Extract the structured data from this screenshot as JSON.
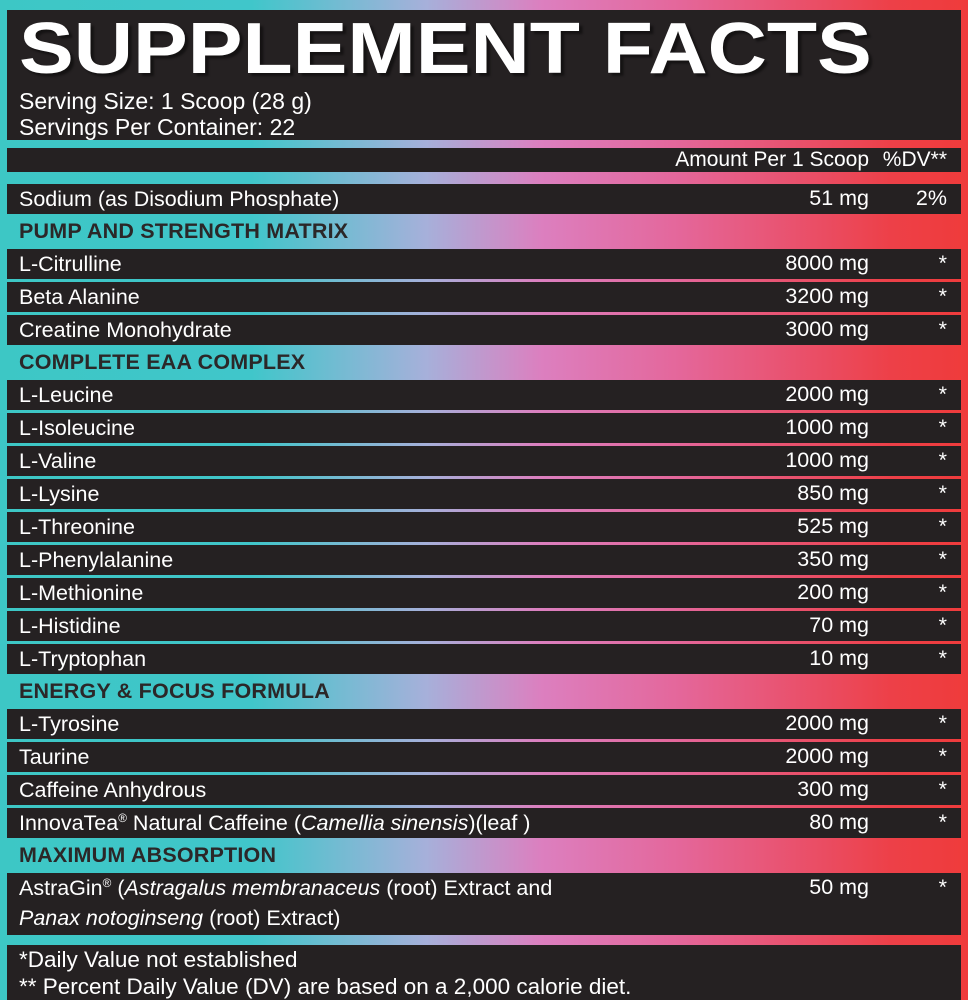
{
  "header": {
    "title": "SUPPLEMENT FACTS",
    "serving_size": "Serving Size: 1 Scoop (28 g)",
    "servings_per_container": "Servings Per Container: 22"
  },
  "columns": {
    "amount_label": "Amount Per 1 Scoop",
    "dv_label": "%DV**"
  },
  "rows": [
    {
      "type": "ingredient",
      "lines": [
        [
          {
            "t": "Sodium (as Disodium Phosphate)"
          }
        ]
      ],
      "amount": "51 mg",
      "dv": "2%"
    },
    {
      "type": "section",
      "title": "PUMP AND STRENGTH MATRIX"
    },
    {
      "type": "ingredient",
      "lines": [
        [
          {
            "t": "L-Citrulline"
          }
        ]
      ],
      "amount": "8000 mg",
      "dv": "*"
    },
    {
      "type": "ingredient",
      "lines": [
        [
          {
            "t": "Beta Alanine"
          }
        ]
      ],
      "amount": "3200 mg",
      "dv": "*"
    },
    {
      "type": "ingredient",
      "lines": [
        [
          {
            "t": "Creatine Monohydrate"
          }
        ]
      ],
      "amount": "3000 mg",
      "dv": "*"
    },
    {
      "type": "section",
      "title": "COMPLETE EAA COMPLEX"
    },
    {
      "type": "ingredient",
      "lines": [
        [
          {
            "t": "L-Leucine"
          }
        ]
      ],
      "amount": "2000 mg",
      "dv": "*"
    },
    {
      "type": "ingredient",
      "lines": [
        [
          {
            "t": "L-Isoleucine"
          }
        ]
      ],
      "amount": "1000 mg",
      "dv": "*"
    },
    {
      "type": "ingredient",
      "lines": [
        [
          {
            "t": "L-Valine"
          }
        ]
      ],
      "amount": "1000 mg",
      "dv": "*"
    },
    {
      "type": "ingredient",
      "lines": [
        [
          {
            "t": "L-Lysine"
          }
        ]
      ],
      "amount": "850 mg",
      "dv": "*"
    },
    {
      "type": "ingredient",
      "lines": [
        [
          {
            "t": "L-Threonine"
          }
        ]
      ],
      "amount": "525 mg",
      "dv": "*"
    },
    {
      "type": "ingredient",
      "lines": [
        [
          {
            "t": "L-Phenylalanine"
          }
        ]
      ],
      "amount": "350 mg",
      "dv": "*"
    },
    {
      "type": "ingredient",
      "lines": [
        [
          {
            "t": "L-Methionine"
          }
        ]
      ],
      "amount": "200 mg",
      "dv": "*"
    },
    {
      "type": "ingredient",
      "lines": [
        [
          {
            "t": "L-Histidine"
          }
        ]
      ],
      "amount": "70 mg",
      "dv": "*"
    },
    {
      "type": "ingredient",
      "lines": [
        [
          {
            "t": "L-Tryptophan"
          }
        ]
      ],
      "amount": "10 mg",
      "dv": "*"
    },
    {
      "type": "section",
      "title": "ENERGY & FOCUS FORMULA"
    },
    {
      "type": "ingredient",
      "lines": [
        [
          {
            "t": "L-Tyrosine"
          }
        ]
      ],
      "amount": "2000 mg",
      "dv": "*"
    },
    {
      "type": "ingredient",
      "lines": [
        [
          {
            "t": "Taurine"
          }
        ]
      ],
      "amount": "2000 mg",
      "dv": "*"
    },
    {
      "type": "ingredient",
      "lines": [
        [
          {
            "t": "Caffeine Anhydrous"
          }
        ]
      ],
      "amount": "300 mg",
      "dv": "*"
    },
    {
      "type": "ingredient",
      "lines": [
        [
          {
            "t": "InnovaTea"
          },
          {
            "t": "®",
            "sup": true
          },
          {
            "t": " Natural Caffeine ("
          },
          {
            "t": "Camellia sinensis",
            "italic": true
          },
          {
            "t": ")(leaf )"
          }
        ]
      ],
      "amount": "80 mg",
      "dv": "*"
    },
    {
      "type": "section",
      "title": "MAXIMUM ABSORPTION"
    },
    {
      "type": "ingredient",
      "tall": true,
      "lines": [
        [
          {
            "t": "AstraGin"
          },
          {
            "t": "®",
            "sup": true
          },
          {
            "t": " ("
          },
          {
            "t": "Astragalus membranaceus",
            "italic": true
          },
          {
            "t": " (root) Extract and"
          }
        ],
        [
          {
            "t": "Panax notoginseng",
            "italic": true
          },
          {
            "t": " (root) Extract)"
          }
        ]
      ],
      "amount": "50 mg",
      "dv": "*"
    }
  ],
  "footnotes": {
    "line1": "*Daily Value not established",
    "line2": "** Percent Daily Value (DV) are based on a 2,000 calorie diet."
  },
  "colors": {
    "panel_dark": "#252122",
    "text_light": "#FFFFFF",
    "section_text": "#2B2728",
    "gradient_teal": "#3DC7C5",
    "gradient_periwinkle": "#A6B0DA",
    "gradient_pink": "#DC7FBF",
    "gradient_red": "#EF3B3B"
  }
}
